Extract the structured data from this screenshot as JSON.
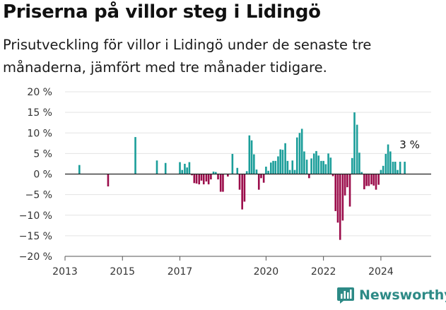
{
  "title": "Priserna på villor steg i Lidingö",
  "subtitle": "Prisutveckling för villor i Lidingö under de senaste tre månaderna, jämfört med tre månader tidigare.",
  "brand": "Newsworthy",
  "colors": {
    "positive": "#1b9e9a",
    "negative": "#9b0d4b",
    "brand": "#2d8a86"
  },
  "chart_data": {
    "type": "bar",
    "ylabel": "",
    "xlabel": "",
    "ylim": [
      -20,
      20
    ],
    "yticks": [
      -20,
      -15,
      -10,
      -5,
      0,
      5,
      10,
      15,
      20
    ],
    "ytick_labels": [
      "−20 %",
      "−15 %",
      "−10 %",
      "−5 %",
      "0 %",
      "5 %",
      "10 %",
      "15 %",
      "20 %"
    ],
    "xlim": [
      2013.0,
      2025.75
    ],
    "xticks": [
      2013,
      2015,
      2017,
      2020,
      2022,
      2024
    ],
    "xtick_labels": [
      "2013",
      "2015",
      "2017",
      "2020",
      "2022",
      "2024"
    ],
    "annotation": {
      "x": 2024.6,
      "value": 3,
      "label": "3 %"
    },
    "x": [
      2013.5,
      2014.5,
      2015.45,
      2016.2,
      2016.5,
      2017.0,
      2017.08,
      2017.17,
      2017.25,
      2017.33,
      2017.42,
      2017.5,
      2017.58,
      2017.67,
      2017.75,
      2017.83,
      2017.92,
      2018.0,
      2018.08,
      2018.17,
      2018.25,
      2018.33,
      2018.42,
      2018.5,
      2018.58,
      2018.67,
      2018.83,
      2019.0,
      2019.08,
      2019.17,
      2019.25,
      2019.33,
      2019.42,
      2019.5,
      2019.58,
      2019.67,
      2019.75,
      2019.83,
      2019.92,
      2020.0,
      2020.08,
      2020.17,
      2020.25,
      2020.33,
      2020.42,
      2020.5,
      2020.58,
      2020.67,
      2020.75,
      2020.83,
      2020.92,
      2021.0,
      2021.08,
      2021.17,
      2021.25,
      2021.33,
      2021.42,
      2021.5,
      2021.58,
      2021.67,
      2021.75,
      2021.83,
      2021.92,
      2022.0,
      2022.08,
      2022.17,
      2022.25,
      2022.33,
      2022.42,
      2022.5,
      2022.58,
      2022.67,
      2022.75,
      2022.83,
      2022.92,
      2023.0,
      2023.08,
      2023.17,
      2023.25,
      2023.33,
      2023.42,
      2023.5,
      2023.58,
      2023.67,
      2023.75,
      2023.83,
      2023.92,
      2024.0,
      2024.08,
      2024.17,
      2024.25,
      2024.33,
      2024.42,
      2024.5,
      2024.58,
      2024.67,
      2024.83
    ],
    "values": [
      2.2,
      -3.0,
      9.0,
      3.3,
      2.7,
      2.9,
      1.0,
      2.5,
      1.6,
      2.9,
      -0.3,
      -2.2,
      -2.3,
      -2.5,
      -1.6,
      -2.5,
      -1.8,
      -2.5,
      -1.3,
      0.6,
      0.5,
      -1.3,
      -4.3,
      -4.3,
      0.0,
      -0.6,
      4.9,
      1.5,
      -3.8,
      -8.6,
      -6.7,
      0.7,
      9.4,
      8.2,
      4.8,
      1.1,
      -3.8,
      -1.0,
      -2.1,
      1.8,
      0.8,
      2.8,
      3.2,
      3.2,
      4.3,
      6.0,
      5.9,
      7.5,
      3.2,
      1.0,
      3.3,
      1.0,
      8.9,
      10.0,
      11.0,
      5.5,
      3.5,
      -1.0,
      3.8,
      5.0,
      5.6,
      4.5,
      3.2,
      3.2,
      2.4,
      5.0,
      4.0,
      -0.5,
      -9.0,
      -11.8,
      -16.0,
      -11.3,
      -5.2,
      -3.2,
      -7.9,
      3.9,
      15.0,
      12.0,
      5.2,
      0.5,
      -3.7,
      -2.9,
      -2.9,
      -2.5,
      -2.8,
      -3.8,
      -2.6,
      1.0,
      2.0,
      4.9,
      7.2,
      5.5,
      3.0,
      3.0,
      1.0,
      3.0,
      3.0
    ]
  }
}
